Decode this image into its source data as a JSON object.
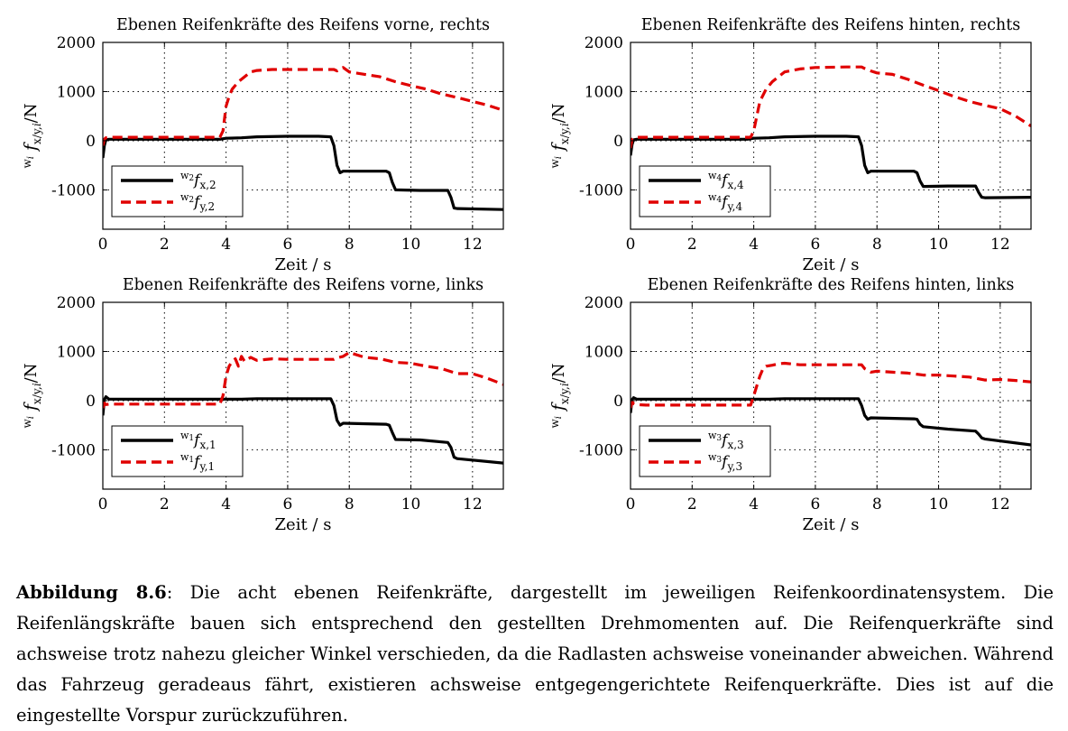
{
  "chart_data": [
    {
      "type": "line",
      "title": "Ebenen Reifenkräfte des Reifens vorne, rechts",
      "xlabel": "Zeit / s",
      "ylabel": "wi fx/y,i/N",
      "xlim": [
        0,
        13
      ],
      "ylim": [
        -1800,
        2000
      ],
      "xticks": [
        0,
        2,
        4,
        6,
        8,
        10,
        12
      ],
      "yticks": [
        -1000,
        0,
        1000,
        2000
      ],
      "grid": true,
      "legend_position": "bottom-left",
      "series": [
        {
          "name": "w2 fx,2",
          "legend_pre": "w",
          "legend_presub": "2",
          "legend_main": "f",
          "legend_sub": "x,2",
          "color": "#000000",
          "dash": "solid",
          "x": [
            0,
            0.05,
            0.1,
            0.2,
            3.8,
            4.0,
            4.5,
            5.0,
            6.0,
            7.0,
            7.4,
            7.5,
            7.6,
            7.7,
            7.8,
            9.2,
            9.3,
            9.4,
            9.5,
            10.3,
            11.2,
            11.3,
            11.4,
            11.5,
            13.0
          ],
          "y": [
            -350,
            -100,
            20,
            30,
            30,
            50,
            60,
            80,
            90,
            90,
            80,
            -100,
            -500,
            -650,
            -620,
            -620,
            -650,
            -850,
            -1000,
            -1010,
            -1010,
            -1150,
            -1370,
            -1380,
            -1400
          ]
        },
        {
          "name": "w2 fy,2",
          "legend_pre": "w",
          "legend_presub": "2",
          "legend_main": "f",
          "legend_sub": "y,2",
          "color": "#e00000",
          "dash": "dashed",
          "x": [
            0,
            0.05,
            0.1,
            0.2,
            3.8,
            3.9,
            4.0,
            4.1,
            4.2,
            4.4,
            4.6,
            4.8,
            5.0,
            5.5,
            6.0,
            7.0,
            7.5,
            7.6,
            7.8,
            8.0,
            8.5,
            9.0,
            9.5,
            10.0,
            10.5,
            11.0,
            11.5,
            12.0,
            12.5,
            13.0
          ],
          "y": [
            -100,
            30,
            60,
            70,
            70,
            200,
            700,
            900,
            1050,
            1200,
            1300,
            1400,
            1430,
            1450,
            1450,
            1450,
            1450,
            1420,
            1490,
            1400,
            1350,
            1300,
            1200,
            1120,
            1050,
            950,
            880,
            800,
            720,
            620
          ]
        }
      ]
    },
    {
      "type": "line",
      "title": "Ebenen Reifenkräfte des Reifens hinten, rechts",
      "xlabel": "Zeit / s",
      "ylabel": "wi fx/y,i/N",
      "xlim": [
        0,
        13
      ],
      "ylim": [
        -1800,
        2000
      ],
      "xticks": [
        0,
        2,
        4,
        6,
        8,
        10,
        12
      ],
      "yticks": [
        -1000,
        0,
        1000,
        2000
      ],
      "grid": true,
      "legend_position": "bottom-left",
      "series": [
        {
          "name": "w4 fx,4",
          "legend_pre": "w",
          "legend_presub": "4",
          "legend_main": "f",
          "legend_sub": "x,4",
          "color": "#000000",
          "dash": "solid",
          "x": [
            0,
            0.05,
            0.1,
            0.2,
            3.8,
            4.0,
            4.5,
            5.0,
            6.0,
            7.0,
            7.4,
            7.5,
            7.6,
            7.7,
            7.8,
            9.2,
            9.3,
            9.4,
            9.5,
            10.3,
            11.2,
            11.3,
            11.4,
            11.5,
            13.0
          ],
          "y": [
            -300,
            -80,
            20,
            30,
            30,
            50,
            60,
            80,
            90,
            90,
            80,
            -100,
            -500,
            -650,
            -620,
            -620,
            -650,
            -820,
            -930,
            -920,
            -920,
            -1050,
            -1150,
            -1160,
            -1150
          ]
        },
        {
          "name": "w4 fy,4",
          "legend_pre": "w",
          "legend_presub": "4",
          "legend_main": "f",
          "legend_sub": "y,4",
          "color": "#e00000",
          "dash": "dashed",
          "x": [
            0,
            0.05,
            0.1,
            0.2,
            3.9,
            4.0,
            4.1,
            4.2,
            4.4,
            4.6,
            4.8,
            5.0,
            5.5,
            6.0,
            7.0,
            7.5,
            7.6,
            7.8,
            8.0,
            8.5,
            9.0,
            9.5,
            10.0,
            10.5,
            11.0,
            11.5,
            12.0,
            12.5,
            13.0
          ],
          "y": [
            -150,
            30,
            60,
            70,
            70,
            200,
            500,
            800,
            1050,
            1200,
            1300,
            1400,
            1460,
            1490,
            1500,
            1500,
            1470,
            1420,
            1380,
            1350,
            1250,
            1130,
            1020,
            900,
            800,
            720,
            650,
            500,
            300
          ]
        }
      ]
    },
    {
      "type": "line",
      "title": "Ebenen Reifenkräfte des Reifens vorne, links",
      "xlabel": "Zeit / s",
      "ylabel": "wi fx/y,i/N",
      "xlim": [
        0,
        13
      ],
      "ylim": [
        -1800,
        2000
      ],
      "xticks": [
        0,
        2,
        4,
        6,
        8,
        10,
        12
      ],
      "yticks": [
        -1000,
        0,
        1000,
        2000
      ],
      "grid": true,
      "legend_position": "bottom-left",
      "series": [
        {
          "name": "w1 fx,1",
          "legend_pre": "w",
          "legend_presub": "1",
          "legend_main": "f",
          "legend_sub": "x,1",
          "color": "#000000",
          "dash": "solid",
          "x": [
            0,
            0.05,
            0.1,
            0.2,
            3.8,
            4.0,
            4.5,
            5.0,
            6.0,
            7.0,
            7.4,
            7.5,
            7.6,
            7.7,
            7.8,
            9.2,
            9.3,
            9.4,
            9.5,
            10.3,
            11.2,
            11.3,
            11.4,
            11.5,
            13.0
          ],
          "y": [
            -300,
            20,
            80,
            30,
            30,
            30,
            30,
            40,
            40,
            40,
            40,
            -100,
            -400,
            -500,
            -460,
            -480,
            -500,
            -650,
            -790,
            -800,
            -850,
            -950,
            -1150,
            -1180,
            -1270
          ]
        },
        {
          "name": "w1 fy,1",
          "legend_pre": "w",
          "legend_presub": "1",
          "legend_main": "f",
          "legend_sub": "y,1",
          "color": "#e00000",
          "dash": "dashed",
          "x": [
            0,
            0.05,
            0.1,
            0.2,
            3.8,
            3.9,
            4.0,
            4.1,
            4.2,
            4.3,
            4.4,
            4.5,
            4.6,
            4.8,
            5.0,
            5.5,
            6.0,
            7.0,
            7.5,
            7.6,
            7.8,
            8.0,
            8.5,
            9.0,
            9.5,
            10.0,
            10.5,
            11.0,
            11.5,
            12.0,
            12.5,
            13.0
          ],
          "y": [
            -150,
            -50,
            -80,
            -70,
            -70,
            100,
            500,
            700,
            800,
            850,
            700,
            900,
            800,
            880,
            820,
            850,
            840,
            840,
            840,
            870,
            900,
            980,
            880,
            850,
            780,
            760,
            700,
            650,
            550,
            550,
            450,
            330
          ]
        }
      ]
    },
    {
      "type": "line",
      "title": "Ebenen Reifenkräfte des Reifens hinten, links",
      "xlabel": "Zeit / s",
      "ylabel": "wi fx/y,i/N",
      "xlim": [
        0,
        13
      ],
      "ylim": [
        -1800,
        2000
      ],
      "xticks": [
        0,
        2,
        4,
        6,
        8,
        10,
        12
      ],
      "yticks": [
        -1000,
        0,
        1000,
        2000
      ],
      "grid": true,
      "legend_position": "bottom-left",
      "series": [
        {
          "name": "w3 fx,3",
          "legend_pre": "w",
          "legend_presub": "3",
          "legend_main": "f",
          "legend_sub": "x,3",
          "color": "#000000",
          "dash": "solid",
          "x": [
            0,
            0.05,
            0.1,
            0.2,
            3.8,
            4.0,
            4.5,
            5.0,
            6.0,
            7.0,
            7.4,
            7.5,
            7.6,
            7.7,
            7.8,
            9.2,
            9.3,
            9.4,
            9.5,
            10.3,
            11.2,
            11.3,
            11.4,
            11.5,
            13.0
          ],
          "y": [
            -250,
            20,
            60,
            30,
            30,
            30,
            30,
            40,
            40,
            40,
            40,
            -100,
            -300,
            -380,
            -350,
            -370,
            -380,
            -480,
            -530,
            -580,
            -620,
            -680,
            -760,
            -780,
            -900
          ]
        },
        {
          "name": "w3 fy,3",
          "legend_pre": "w",
          "legend_presub": "3",
          "legend_main": "f",
          "legend_sub": "y,3",
          "color": "#e00000",
          "dash": "dashed",
          "x": [
            0,
            0.05,
            0.1,
            0.2,
            0.5,
            1.0,
            3.9,
            4.0,
            4.1,
            4.2,
            4.3,
            4.4,
            4.6,
            4.8,
            5.0,
            5.5,
            6.0,
            7.0,
            7.5,
            7.6,
            7.8,
            8.0,
            8.5,
            9.0,
            9.5,
            10.0,
            10.5,
            11.0,
            11.5,
            12.0,
            12.5,
            13.0
          ],
          "y": [
            -150,
            -20,
            -60,
            -80,
            -90,
            -90,
            -90,
            100,
            300,
            500,
            650,
            700,
            720,
            750,
            760,
            730,
            730,
            730,
            730,
            650,
            580,
            600,
            580,
            560,
            520,
            520,
            500,
            480,
            420,
            430,
            410,
            380
          ]
        }
      ]
    }
  ],
  "caption": {
    "lead": "Abbildung 8.6",
    "text": ": Die acht ebenen Reifenkräfte, dargestellt im jeweiligen Reifenkoordinatensystem. Die Reifenlängskräfte bauen sich entsprechend den gestellten Drehmomenten auf. Die Reifenquerkräfte sind achsweise trotz nahezu gleicher Winkel verschieden, da die Radlasten achsweise voneinander abweichen. Während das Fahrzeug geradeaus fährt, existieren achsweise entgegengerichtete Reifenquerkräfte. Dies ist auf die eingestellte Vorspur zurückzuführen."
  }
}
